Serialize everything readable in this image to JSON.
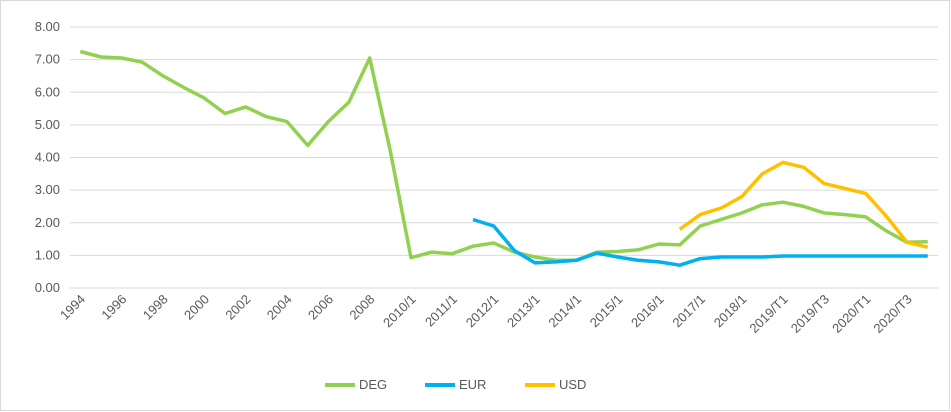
{
  "chart_data": {
    "type": "line",
    "categories": [
      "1994",
      null,
      "1996",
      null,
      "1998",
      null,
      "2000",
      null,
      "2002",
      null,
      "2004",
      null,
      "2006",
      null,
      "2008",
      null,
      "2010/1",
      null,
      "2011/1",
      null,
      "2012/1",
      null,
      "2013/1",
      null,
      "2014/1",
      null,
      "2015/1",
      null,
      "2016/1",
      null,
      "2017/1",
      null,
      "2018/1",
      null,
      "2019/T1",
      null,
      "2019/T3",
      null,
      "2020/T1",
      null,
      "2020/T3",
      null
    ],
    "series": [
      {
        "name": "DEG",
        "color": "#92d050",
        "values": [
          7.25,
          7.08,
          7.05,
          6.92,
          6.5,
          6.15,
          5.82,
          5.35,
          5.55,
          5.25,
          5.1,
          4.37,
          5.1,
          5.7,
          7.05,
          4.2,
          0.93,
          1.1,
          1.05,
          1.28,
          1.38,
          1.1,
          0.95,
          0.85,
          0.85,
          1.1,
          1.12,
          1.17,
          1.35,
          1.32,
          1.9,
          2.1,
          2.3,
          2.55,
          2.63,
          2.5,
          2.3,
          2.25,
          2.18,
          1.75,
          1.4,
          1.42
        ]
      },
      {
        "name": "EUR",
        "color": "#00b0f0",
        "values": [
          null,
          null,
          null,
          null,
          null,
          null,
          null,
          null,
          null,
          null,
          null,
          null,
          null,
          null,
          null,
          null,
          null,
          null,
          null,
          2.1,
          1.9,
          1.15,
          0.77,
          0.8,
          0.85,
          1.07,
          0.95,
          0.85,
          0.8,
          0.7,
          0.9,
          0.95,
          0.95,
          0.95,
          0.98,
          0.98,
          0.98,
          0.98,
          0.98,
          0.98,
          0.98,
          0.98
        ]
      },
      {
        "name": "USD",
        "color": "#ffc000",
        "values": [
          null,
          null,
          null,
          null,
          null,
          null,
          null,
          null,
          null,
          null,
          null,
          null,
          null,
          null,
          null,
          null,
          null,
          null,
          null,
          null,
          null,
          null,
          null,
          null,
          null,
          null,
          null,
          null,
          null,
          1.8,
          2.25,
          2.45,
          2.8,
          3.5,
          3.85,
          3.7,
          3.2,
          3.05,
          2.9,
          2.2,
          1.4,
          1.25
        ]
      }
    ],
    "ylim": [
      0,
      8
    ],
    "yticks": [
      {
        "value": 0,
        "label": "0.00"
      },
      {
        "value": 1,
        "label": "1.00"
      },
      {
        "value": 2,
        "label": "2.00"
      },
      {
        "value": 3,
        "label": "3.00"
      },
      {
        "value": 4,
        "label": "4.00"
      },
      {
        "value": 5,
        "label": "5.00"
      },
      {
        "value": 6,
        "label": "6.00"
      },
      {
        "value": 7,
        "label": "7.00"
      },
      {
        "value": 8,
        "label": "8.00"
      }
    ],
    "grid": true,
    "legend": "bottom"
  }
}
